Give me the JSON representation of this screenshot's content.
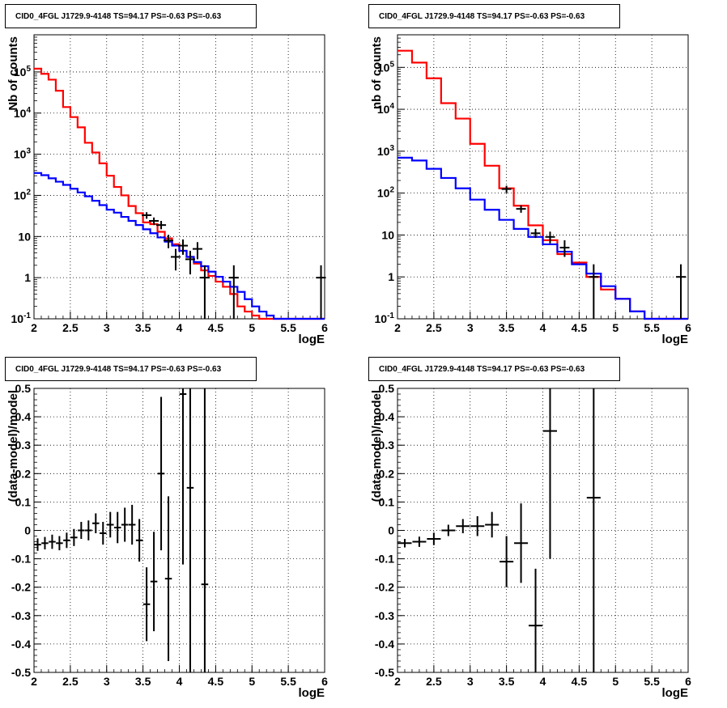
{
  "chart_data": [
    {
      "type": "line",
      "title": "CID0_4FGL J1729.9-4148 TS=94.17 PS=-0.63 PS=-0.63",
      "xlabel": "logE",
      "ylabel": "Nb of counts",
      "xlim": [
        2,
        6
      ],
      "ylim": [
        0.1,
        800000
      ],
      "yscale": "log",
      "grid": true,
      "x_ticks": [
        "2",
        "2.5",
        "3",
        "3.5",
        "4",
        "4.5",
        "5",
        "5.5",
        "6"
      ],
      "y_ticks": [
        "10^-1",
        "1",
        "10",
        "10^2",
        "10^3",
        "10^4",
        "10^5"
      ],
      "bin_edges": [
        2.0,
        2.1,
        2.2,
        2.3,
        2.4,
        2.5,
        2.6,
        2.7,
        2.8,
        2.9,
        3.0,
        3.1,
        3.2,
        3.3,
        3.4,
        3.5,
        3.6,
        3.7,
        3.8,
        3.9,
        4.0,
        4.1,
        4.2,
        4.3,
        4.4,
        4.5,
        4.6,
        4.7,
        4.8,
        4.9,
        5.0,
        5.1,
        5.2,
        5.3,
        5.4,
        5.5,
        5.6,
        5.7,
        5.8,
        5.9,
        6.0
      ],
      "series": [
        {
          "color": "#ff0000",
          "values": [
            120000,
            90000,
            65000,
            35000,
            14000,
            8000,
            4500,
            1900,
            1100,
            600,
            300,
            160,
            100,
            55,
            37,
            22,
            20,
            13,
            9,
            6.5,
            4.5,
            3.2,
            2.2,
            1.5,
            1.1,
            0.8,
            0.6,
            0.4,
            0.2,
            0.15,
            0.12,
            0.1,
            0.1,
            0.1,
            0.1,
            0.1,
            0.1,
            0.1,
            0.1,
            0.1
          ]
        },
        {
          "color": "#0000ff",
          "values": [
            350,
            310,
            260,
            215,
            180,
            145,
            118,
            95,
            74,
            58,
            45,
            38,
            30,
            24,
            19,
            15,
            12,
            9.5,
            7.5,
            6,
            4.5,
            3.2,
            2.4,
            1.9,
            1.4,
            1.05,
            0.8,
            0.6,
            0.45,
            0.3,
            0.2,
            0.15,
            0.12,
            0.1,
            0.1,
            0.1,
            0.1,
            0.1,
            0.1,
            0.1
          ]
        }
      ],
      "data_points": [
        {
          "x": 3.55,
          "y": 33,
          "ylo": 27,
          "yhi": 39
        },
        {
          "x": 3.65,
          "y": 24,
          "ylo": 19,
          "yhi": 29
        },
        {
          "x": 3.75,
          "y": 19,
          "ylo": 15,
          "yhi": 24
        },
        {
          "x": 3.85,
          "y": 8,
          "ylo": 5.2,
          "yhi": 11
        },
        {
          "x": 3.95,
          "y": 3.2,
          "ylo": 1.5,
          "yhi": 5
        },
        {
          "x": 4.05,
          "y": 6,
          "ylo": 3.6,
          "yhi": 8.5
        },
        {
          "x": 4.15,
          "y": 2.8,
          "ylo": 1.2,
          "yhi": 4.5
        },
        {
          "x": 4.25,
          "y": 5,
          "ylo": 2.8,
          "yhi": 7.3
        },
        {
          "x": 4.35,
          "y": 1,
          "ylo": 0.1,
          "yhi": 2
        },
        {
          "x": 4.75,
          "y": 1,
          "ylo": 0.1,
          "yhi": 2
        },
        {
          "x": 5.95,
          "y": 1,
          "ylo": 0.1,
          "yhi": 2
        }
      ]
    },
    {
      "type": "line",
      "title": "CID0_4FGL J1729.9-4148 TS=94.17 PS=-0.63 PS=-0.63",
      "xlabel": "logE",
      "ylabel": "nb of counts",
      "xlim": [
        2,
        6
      ],
      "ylim": [
        0.1,
        600000
      ],
      "yscale": "log",
      "grid": true,
      "x_ticks": [
        "2",
        "2.5",
        "3",
        "3.5",
        "4",
        "4.5",
        "5",
        "5.5",
        "6"
      ],
      "y_ticks": [
        "10^-1",
        "1",
        "10",
        "10^2",
        "10^3",
        "10^4",
        "10^5"
      ],
      "bin_edges": [
        2.0,
        2.2,
        2.4,
        2.6,
        2.8,
        3.0,
        3.2,
        3.4,
        3.6,
        3.8,
        4.0,
        4.2,
        4.4,
        4.6,
        4.8,
        5.0,
        5.2,
        5.4,
        5.6,
        5.8,
        6.0
      ],
      "series": [
        {
          "color": "#ff0000",
          "values": [
            250000,
            130000,
            55000,
            14000,
            6000,
            1500,
            450,
            130,
            50,
            17,
            7.5,
            3.5,
            2.2,
            1,
            0.5,
            0.3,
            0.15,
            0.1,
            0.1,
            0.1
          ]
        },
        {
          "color": "#0000ff",
          "values": [
            700,
            600,
            380,
            230,
            130,
            70,
            40,
            23,
            14,
            9,
            6,
            4,
            2,
            1.2,
            0.6,
            0.3,
            0.15,
            0.1,
            0.1,
            0.1
          ]
        }
      ],
      "data_points": [
        {
          "x": 3.5,
          "y": 125,
          "ylo": 100,
          "yhi": 150
        },
        {
          "x": 3.7,
          "y": 42,
          "ylo": 34,
          "yhi": 51
        },
        {
          "x": 3.9,
          "y": 11,
          "ylo": 8.5,
          "yhi": 14
        },
        {
          "x": 4.1,
          "y": 9,
          "ylo": 6.3,
          "yhi": 12
        },
        {
          "x": 4.3,
          "y": 5,
          "ylo": 3,
          "yhi": 7.5
        },
        {
          "x": 4.7,
          "y": 1,
          "ylo": 0.1,
          "yhi": 2
        },
        {
          "x": 5.9,
          "y": 1,
          "ylo": 0.1,
          "yhi": 2
        }
      ]
    },
    {
      "type": "scatter",
      "title": "CID0_4FGL J1729.9-4148 TS=94.17 PS=-0.63 PS=-0.63",
      "xlabel": "logE",
      "ylabel": "(data-model)/model",
      "xlim": [
        2,
        6
      ],
      "ylim": [
        -0.5,
        0.5
      ],
      "grid": true,
      "x_ticks": [
        "2",
        "2.5",
        "3",
        "3.5",
        "4",
        "4.5",
        "5",
        "5.5",
        "6"
      ],
      "y_ticks": [
        "-0.5",
        "-0.4",
        "-0.3",
        "-0.2",
        "-0.1",
        "0",
        "0.1",
        "0.2",
        "0.3",
        "0.4",
        "0.5"
      ],
      "points": [
        {
          "x": 2.05,
          "y": -0.05,
          "err": 0.022
        },
        {
          "x": 2.15,
          "y": -0.045,
          "err": 0.022
        },
        {
          "x": 2.25,
          "y": -0.04,
          "err": 0.025
        },
        {
          "x": 2.35,
          "y": -0.045,
          "err": 0.025
        },
        {
          "x": 2.45,
          "y": -0.035,
          "err": 0.027
        },
        {
          "x": 2.55,
          "y": -0.025,
          "err": 0.03
        },
        {
          "x": 2.65,
          "y": 0.0,
          "err": 0.03
        },
        {
          "x": 2.75,
          "y": 0.0,
          "err": 0.035
        },
        {
          "x": 2.85,
          "y": 0.025,
          "err": 0.035
        },
        {
          "x": 2.95,
          "y": -0.01,
          "err": 0.04
        },
        {
          "x": 3.05,
          "y": 0.02,
          "err": 0.045
        },
        {
          "x": 3.15,
          "y": 0.01,
          "err": 0.055
        },
        {
          "x": 3.25,
          "y": 0.02,
          "err": 0.06
        },
        {
          "x": 3.35,
          "y": 0.02,
          "err": 0.07
        },
        {
          "x": 3.45,
          "y": -0.035,
          "err": 0.075
        },
        {
          "x": 3.55,
          "y": -0.26,
          "err": 0.13
        },
        {
          "x": 3.65,
          "y": -0.18,
          "err": 0.175
        },
        {
          "x": 3.75,
          "y": 0.2,
          "err": 0.27
        },
        {
          "x": 3.85,
          "y": -0.17,
          "err": 0.29
        },
        {
          "x": 4.05,
          "y": 0.48,
          "err": 0.6
        },
        {
          "x": 4.15,
          "y": 0.15,
          "err": 0.7
        },
        {
          "x": 4.35,
          "y": -0.19,
          "err": 0.75
        }
      ]
    },
    {
      "type": "scatter",
      "title": "CID0_4FGL J1729.9-4148 TS=94.17 PS=-0.63 PS=-0.63",
      "xlabel": "logE",
      "ylabel": "(data-model)/model",
      "xlim": [
        2,
        6
      ],
      "ylim": [
        -0.5,
        0.5
      ],
      "grid": true,
      "x_ticks": [
        "2",
        "2.5",
        "3",
        "3.5",
        "4",
        "4.5",
        "5",
        "5.5",
        "6"
      ],
      "y_ticks": [
        "-0.5",
        "-0.4",
        "-0.3",
        "-0.2",
        "-0.1",
        "0",
        "0.1",
        "0.2",
        "0.3",
        "0.4",
        "0.5"
      ],
      "points": [
        {
          "x": 2.1,
          "y": -0.045,
          "err": 0.015
        },
        {
          "x": 2.3,
          "y": -0.04,
          "err": 0.018
        },
        {
          "x": 2.5,
          "y": -0.03,
          "err": 0.022
        },
        {
          "x": 2.7,
          "y": 0.0,
          "err": 0.02
        },
        {
          "x": 2.9,
          "y": 0.015,
          "err": 0.025
        },
        {
          "x": 3.1,
          "y": 0.015,
          "err": 0.035
        },
        {
          "x": 3.3,
          "y": 0.02,
          "err": 0.045
        },
        {
          "x": 3.5,
          "y": -0.11,
          "err": 0.09
        },
        {
          "x": 3.7,
          "y": -0.045,
          "err": 0.14
        },
        {
          "x": 3.9,
          "y": -0.335,
          "err": 0.2
        },
        {
          "x": 4.1,
          "y": 0.35,
          "err": 0.45
        },
        {
          "x": 4.7,
          "y": 0.115,
          "err": 0.8
        }
      ]
    }
  ],
  "colors": {
    "model_total": "#ff0000",
    "model_bkg": "#0000ff",
    "data": "#000000",
    "grid": "#000000"
  }
}
